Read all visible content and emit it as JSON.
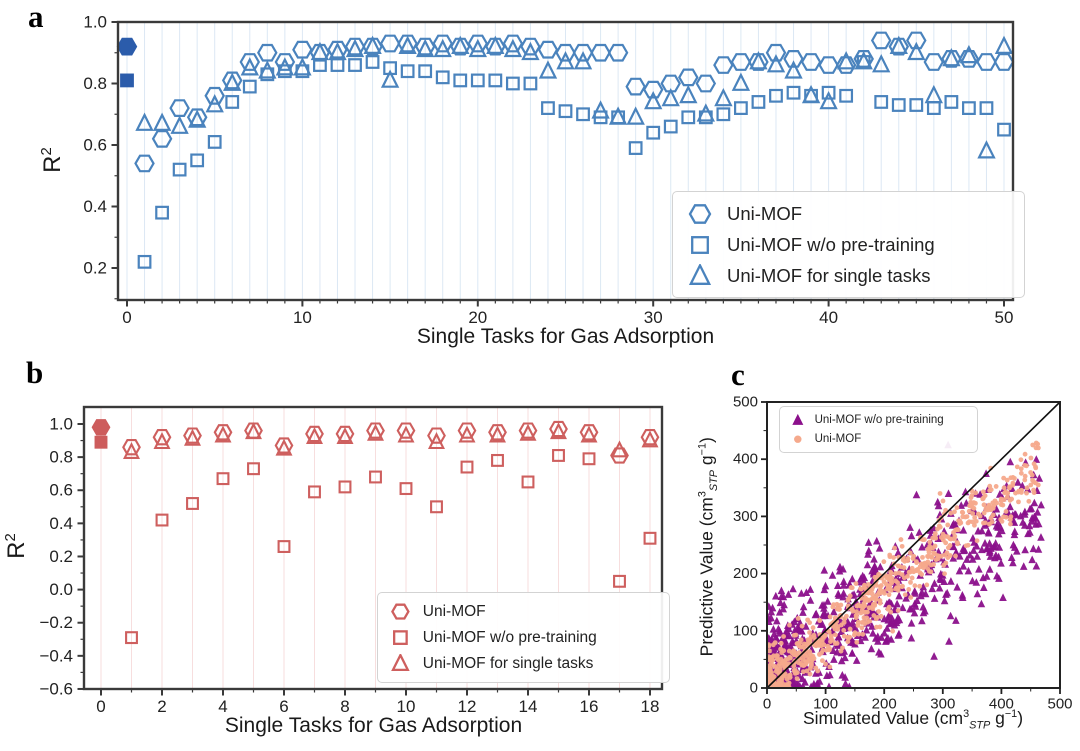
{
  "panels": {
    "a": {
      "letter": "a",
      "ylabel": {
        "base": "R",
        "sup": "2"
      }
    },
    "b": {
      "letter": "b",
      "ylabel": {
        "base": "R",
        "sup": "2"
      }
    },
    "c": {
      "letter": "c",
      "xlabel_parts": {
        "p1": "Simulated Value (cm",
        "sup1": "3",
        "sub1": "STP",
        "p2": " g",
        "sup2": "−1",
        "p3": ")"
      },
      "ylabel_parts": {
        "p1": "Predictive Value (cm",
        "sup1": "3",
        "sub1": "STP",
        "p2": " g",
        "sup2": "−1",
        "p3": ")"
      }
    }
  },
  "chart_data": [
    {
      "type": "scatter",
      "panel": "a",
      "title": "",
      "xlabel": "Single Tasks for Gas Adsorption",
      "ylabel": "R²",
      "xlim": [
        -0.6,
        50.6
      ],
      "ylim": [
        0.095,
        1.0
      ],
      "x_major_ticks": [
        0,
        10,
        20,
        30,
        40,
        50
      ],
      "x_minor_step": 1,
      "y_major_ticks": [
        0.2,
        0.4,
        0.6,
        0.8,
        1.0
      ],
      "y_minor_ticks": [
        0.1,
        0.3,
        0.5,
        0.7,
        0.9
      ],
      "grid": {
        "axis": "x",
        "step": 1,
        "color": "#DCE8F4"
      },
      "colors": {
        "marker": "#4A83BD",
        "filled_marker": "#2B5CAB"
      },
      "x": [
        0,
        1,
        2,
        3,
        4,
        5,
        6,
        7,
        8,
        9,
        10,
        11,
        12,
        13,
        14,
        15,
        16,
        17,
        18,
        19,
        20,
        21,
        22,
        23,
        24,
        25,
        26,
        27,
        28,
        29,
        30,
        31,
        32,
        33,
        34,
        35,
        36,
        37,
        38,
        39,
        40,
        41,
        42,
        43,
        44,
        45,
        46,
        47,
        48,
        49,
        50
      ],
      "series": [
        {
          "name": "Uni-MOF",
          "marker": "hexagon",
          "filled_first_point": true,
          "values": [
            0.92,
            0.54,
            0.62,
            0.72,
            0.69,
            0.76,
            0.81,
            0.87,
            0.9,
            0.87,
            0.91,
            0.9,
            0.91,
            0.92,
            0.92,
            0.93,
            0.93,
            0.92,
            0.93,
            0.92,
            0.93,
            0.92,
            0.93,
            0.92,
            0.91,
            0.9,
            0.9,
            0.9,
            0.9,
            0.79,
            0.78,
            0.8,
            0.82,
            0.8,
            0.86,
            0.87,
            0.87,
            0.9,
            0.88,
            0.87,
            0.86,
            0.86,
            0.88,
            0.94,
            0.92,
            0.94,
            0.87,
            0.88,
            0.88,
            0.87,
            0.87
          ]
        },
        {
          "name": "Uni-MOF w/o pre-training",
          "marker": "square",
          "filled_first_point": true,
          "values": [
            0.81,
            0.22,
            0.38,
            0.52,
            0.55,
            0.61,
            0.74,
            0.79,
            0.83,
            0.84,
            0.84,
            0.86,
            0.86,
            0.86,
            0.87,
            0.85,
            0.84,
            0.84,
            0.82,
            0.81,
            0.81,
            0.81,
            0.8,
            0.8,
            0.72,
            0.71,
            0.7,
            0.69,
            0.69,
            0.59,
            0.64,
            0.66,
            0.69,
            0.69,
            0.7,
            0.72,
            0.74,
            0.76,
            0.77,
            0.76,
            0.77,
            0.76,
            0.87,
            0.74,
            0.73,
            0.73,
            0.72,
            0.74,
            0.72,
            0.72,
            0.65
          ]
        },
        {
          "name": "Uni-MOF for single tasks",
          "marker": "triangle",
          "filled_first_point": false,
          "values": [
            null,
            0.67,
            0.67,
            0.66,
            0.68,
            0.73,
            0.8,
            0.85,
            0.84,
            0.85,
            0.85,
            0.9,
            0.9,
            0.91,
            0.92,
            0.81,
            0.92,
            0.91,
            0.91,
            0.92,
            0.91,
            0.92,
            0.91,
            0.9,
            0.84,
            0.87,
            0.87,
            0.71,
            0.69,
            0.69,
            0.74,
            0.75,
            0.76,
            0.7,
            0.75,
            0.8,
            0.87,
            0.86,
            0.84,
            0.76,
            0.74,
            0.87,
            0.87,
            0.86,
            0.92,
            0.9,
            0.76,
            0.88,
            0.89,
            0.58,
            0.92
          ]
        }
      ],
      "legend": {
        "position": "lower-right",
        "entries": [
          {
            "marker": "hexagon",
            "label": "Uni-MOF"
          },
          {
            "marker": "square",
            "label": "Uni-MOF w/o pre-training"
          },
          {
            "marker": "triangle",
            "label": "Uni-MOF for single tasks"
          }
        ]
      }
    },
    {
      "type": "scatter",
      "panel": "b",
      "title": "",
      "xlabel": "Single Tasks for Gas Adsorption",
      "ylabel": "R²",
      "xlim": [
        -0.56,
        18.4
      ],
      "ylim": [
        -0.6,
        1.1
      ],
      "x_major_ticks": [
        0,
        2,
        4,
        6,
        8,
        10,
        12,
        14,
        16,
        18
      ],
      "x_minor_step": 1,
      "y_major_ticks": [
        -0.6,
        -0.4,
        -0.2,
        0.0,
        0.2,
        0.4,
        0.6,
        0.8,
        1.0
      ],
      "y_minor_ticks": [
        -0.5,
        -0.3,
        -0.1,
        0.1,
        0.3,
        0.5,
        0.7,
        0.9
      ],
      "grid": {
        "axis": "x",
        "step": 1,
        "color": "#F7DEDE"
      },
      "colors": {
        "marker": "#CE5F5E",
        "filled_marker": "#CD5C5C"
      },
      "x": [
        0,
        1,
        2,
        3,
        4,
        5,
        6,
        7,
        8,
        9,
        10,
        11,
        12,
        13,
        14,
        15,
        16,
        17,
        18
      ],
      "series": [
        {
          "name": "Uni-MOF",
          "marker": "hexagon",
          "filled_first_point": true,
          "values": [
            0.98,
            0.86,
            0.92,
            0.93,
            0.95,
            0.96,
            0.87,
            0.94,
            0.94,
            0.96,
            0.96,
            0.93,
            0.96,
            0.95,
            0.96,
            0.97,
            0.95,
            0.81,
            0.92
          ]
        },
        {
          "name": "Uni-MOF w/o pre-training",
          "marker": "square",
          "filled_first_point": true,
          "values": [
            0.89,
            -0.29,
            0.42,
            0.52,
            0.67,
            0.73,
            0.26,
            0.59,
            0.62,
            0.68,
            0.61,
            0.5,
            0.74,
            0.78,
            0.65,
            0.81,
            0.79,
            0.05,
            0.31
          ]
        },
        {
          "name": "Uni-MOF for single tasks",
          "marker": "triangle",
          "filled_first_point": false,
          "values": [
            null,
            0.83,
            0.89,
            0.91,
            0.93,
            0.95,
            0.85,
            0.92,
            0.92,
            0.94,
            0.93,
            0.89,
            0.93,
            0.93,
            0.94,
            0.95,
            0.93,
            0.84,
            0.9
          ]
        }
      ],
      "legend": {
        "position": "lower-right",
        "entries": [
          {
            "marker": "hexagon",
            "label": "Uni-MOF"
          },
          {
            "marker": "square",
            "label": "Uni-MOF w/o pre-training"
          },
          {
            "marker": "triangle",
            "label": "Uni-MOF for single tasks"
          }
        ]
      }
    },
    {
      "type": "scatter",
      "panel": "c",
      "title": "",
      "xlabel": "Simulated Value (cm³STP g⁻¹)",
      "ylabel": "Predictive Value (cm³STP g⁻¹)",
      "xlim": [
        0,
        500
      ],
      "ylim": [
        0,
        500
      ],
      "x_major_ticks": [
        0,
        100,
        200,
        300,
        400,
        500
      ],
      "y_major_ticks": [
        0,
        100,
        200,
        300,
        400,
        500
      ],
      "minor_step": 50,
      "identity_line": {
        "from": [
          0,
          0
        ],
        "to": [
          500,
          500
        ],
        "color": "#111111",
        "width": 1.6
      },
      "series": [
        {
          "name": "Uni-MOF w/o pre-training",
          "marker": "triangle",
          "color": "#8B108B",
          "n": 700,
          "x_max": 468,
          "x_skew": 1.6,
          "trend_slope": 0.62,
          "trend_intercept": 30,
          "noise_sd": 52,
          "seed": 42
        },
        {
          "name": "Uni-MOF",
          "marker": "circle",
          "color": "#F5A98C",
          "n": 700,
          "x_max": 468,
          "x_skew": 1.6,
          "trend_slope": 0.8,
          "trend_intercept": 12,
          "noise_sd": 26,
          "seed": 7
        }
      ],
      "legend": {
        "position": "upper-left",
        "entries": [
          {
            "marker": "triangle",
            "label": "Uni-MOF w/o pre-training"
          },
          {
            "marker": "circle",
            "label": "Uni-MOF"
          }
        ]
      }
    }
  ]
}
